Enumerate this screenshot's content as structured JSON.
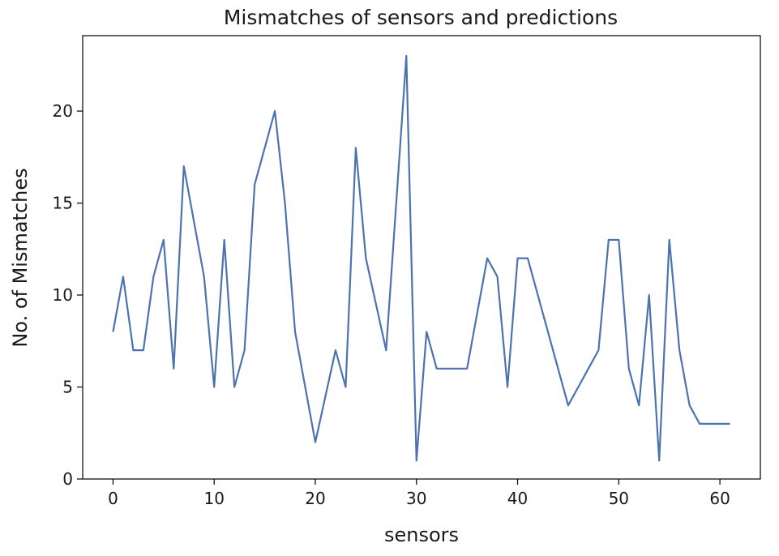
{
  "chart_data": {
    "type": "line",
    "title": "Mismatches of sensors and predictions",
    "xlabel": "sensors",
    "ylabel": "No. of Mismatches",
    "xlim": [
      -3,
      64
    ],
    "ylim": [
      0,
      24.1
    ],
    "xticks": [
      0,
      10,
      20,
      30,
      40,
      50,
      60
    ],
    "yticks": [
      0,
      5,
      10,
      15,
      20
    ],
    "grid": false,
    "line_color": "#4c72b0",
    "series": [
      {
        "x": [
          0,
          1,
          2,
          3,
          4,
          5,
          6,
          7,
          8,
          9,
          10,
          11,
          12,
          13,
          14,
          15,
          16,
          17,
          18,
          19,
          20,
          21,
          22,
          23,
          24,
          25,
          26,
          27,
          28,
          29,
          30,
          31,
          32,
          33,
          34,
          35,
          36,
          37,
          38,
          39,
          40,
          41,
          42,
          43,
          44,
          45,
          46,
          47,
          48,
          49,
          50,
          51,
          52,
          53,
          54,
          55,
          56,
          57,
          58,
          59,
          60,
          61
        ],
        "values": [
          8,
          11,
          7,
          7,
          11,
          13,
          6,
          17,
          14,
          11,
          5,
          13,
          5,
          7,
          16,
          18,
          20,
          15,
          8,
          5,
          2,
          4.5,
          7,
          5,
          18,
          12,
          9.5,
          7,
          15,
          23,
          1,
          8,
          6,
          6,
          6,
          6,
          9,
          12,
          11,
          5,
          12,
          12,
          10,
          8,
          6,
          4,
          5,
          6,
          7,
          13,
          13,
          6,
          4,
          10,
          1,
          13,
          7,
          4,
          3,
          3,
          3,
          3
        ]
      }
    ]
  }
}
